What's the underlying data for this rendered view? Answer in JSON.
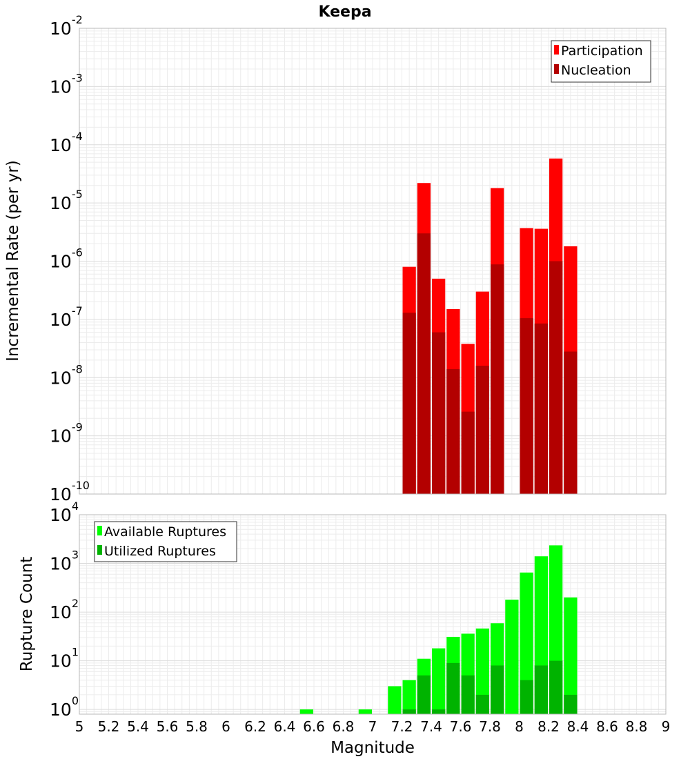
{
  "chart_data": [
    {
      "type": "bar",
      "title": "Keepa",
      "ylabel": "Incremental Rate (per yr)",
      "y_scale": "log",
      "ylim": [
        1e-10,
        0.01
      ],
      "xlim": [
        5,
        9
      ],
      "bin_width": 0.1,
      "grid": true,
      "legend_position": "top-right",
      "x": [
        7.25,
        7.35,
        7.45,
        7.55,
        7.65,
        7.75,
        7.85,
        8.05,
        8.15,
        8.25,
        8.35
      ],
      "series": [
        {
          "name": "Participation",
          "color": "#ff0000",
          "values": [
            8e-07,
            2.2e-05,
            5e-07,
            1.5e-07,
            3.8e-08,
            3e-07,
            1.8e-05,
            3.7e-06,
            3.6e-06,
            5.8e-05,
            1.8e-06
          ]
        },
        {
          "name": "Nucleation",
          "color": "#b30000",
          "values": [
            1.3e-07,
            3e-06,
            6e-08,
            1.4e-08,
            2.6e-09,
            1.6e-08,
            8.8e-07,
            1.05e-07,
            8.5e-08,
            1e-06,
            2.8e-08
          ]
        }
      ],
      "y_ticks": [
        {
          "base": "10",
          "exp": "-2"
        },
        {
          "base": "10",
          "exp": "-3"
        },
        {
          "base": "10",
          "exp": "-4"
        },
        {
          "base": "10",
          "exp": "-5"
        },
        {
          "base": "10",
          "exp": "-6"
        },
        {
          "base": "10",
          "exp": "-7"
        },
        {
          "base": "10",
          "exp": "-8"
        },
        {
          "base": "10",
          "exp": "-9"
        },
        {
          "base": "10",
          "exp": "-10"
        }
      ]
    },
    {
      "type": "bar",
      "xlabel": "Magnitude",
      "ylabel": "Rupture Count",
      "y_scale": "log",
      "ylim": [
        0.8,
        10000
      ],
      "xlim": [
        5,
        9
      ],
      "bin_width": 0.1,
      "grid": true,
      "legend_position": "top-left",
      "series": [
        {
          "name": "Available Ruptures",
          "color": "#00ff00",
          "x": [
            6.55,
            6.95,
            7.15,
            7.25,
            7.35,
            7.45,
            7.55,
            7.65,
            7.75,
            7.85,
            7.95,
            8.05,
            8.15,
            8.25,
            8.35
          ],
          "values": [
            1,
            1,
            3,
            4,
            11,
            18,
            31,
            36,
            46,
            59,
            180,
            650,
            1400,
            2350,
            200
          ]
        },
        {
          "name": "Utilized Ruptures",
          "color": "#00b300",
          "x": [
            7.25,
            7.35,
            7.45,
            7.55,
            7.65,
            7.75,
            7.85,
            8.05,
            8.15,
            8.25,
            8.35
          ],
          "values": [
            1,
            5,
            1,
            9,
            5,
            2,
            8,
            4,
            8,
            10,
            2
          ]
        }
      ],
      "y_ticks": [
        {
          "base": "10",
          "exp": "4"
        },
        {
          "base": "10",
          "exp": "3"
        },
        {
          "base": "10",
          "exp": "2"
        },
        {
          "base": "10",
          "exp": "1"
        },
        {
          "base": "10",
          "exp": "0"
        }
      ],
      "x_ticks": [
        "5",
        "5.2",
        "5.4",
        "5.6",
        "5.8",
        "6",
        "6.2",
        "6.4",
        "6.6",
        "6.8",
        "7",
        "7.2",
        "7.4",
        "7.6",
        "7.8",
        "8",
        "8.2",
        "8.4",
        "8.6",
        "8.8",
        "9"
      ]
    }
  ]
}
